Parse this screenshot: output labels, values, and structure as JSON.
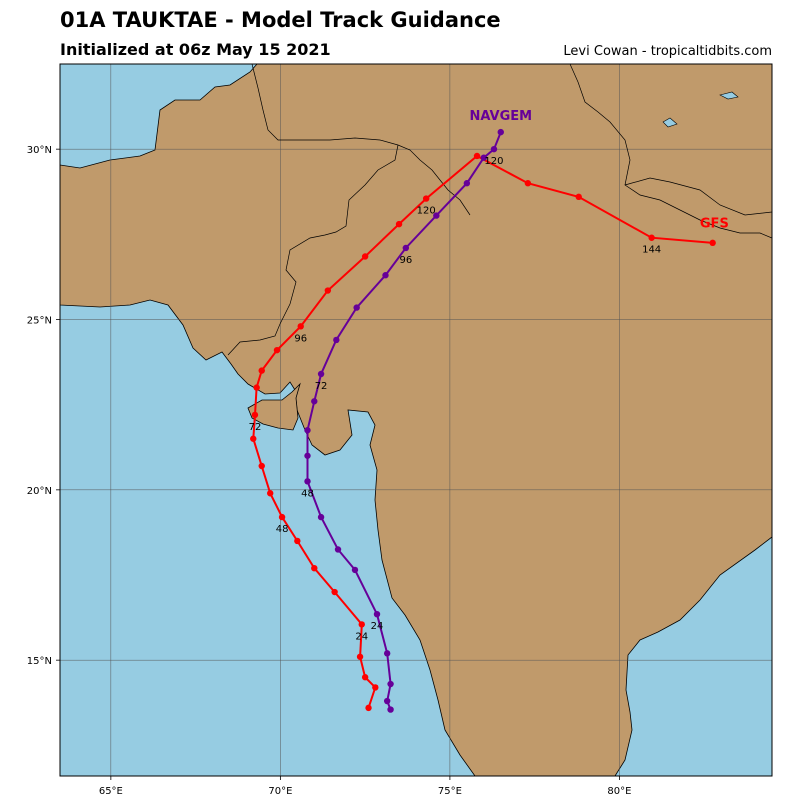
{
  "header": {
    "title": "01A TAUKTAE - Model Track Guidance",
    "subtitle": "Initialized at 06z May 15 2021",
    "credit": "Levi Cowan - tropicaltidbits.com"
  },
  "map": {
    "lon_range": [
      63.5,
      84.5
    ],
    "lat_range": [
      11.6,
      32.5
    ],
    "lon_ticks": [
      {
        "value": 65,
        "label": "65°E"
      },
      {
        "value": 70,
        "label": "70°E"
      },
      {
        "value": 75,
        "label": "75°E"
      },
      {
        "value": 80,
        "label": "80°E"
      }
    ],
    "lat_ticks": [
      {
        "value": 15,
        "label": "15°N"
      },
      {
        "value": 20,
        "label": "20°N"
      },
      {
        "value": 25,
        "label": "25°N"
      },
      {
        "value": 30,
        "label": "30°N"
      }
    ],
    "colors": {
      "land": "#c09a6b",
      "ocean": "#96cce2",
      "grid": "#555555"
    }
  },
  "models": [
    {
      "name": "GFS",
      "color": "#ff0000",
      "points": [
        {
          "lon": 72.6,
          "lat": 13.6
        },
        {
          "lon": 72.8,
          "lat": 14.2
        },
        {
          "lon": 72.5,
          "lat": 14.5
        },
        {
          "lon": 72.35,
          "lat": 15.1
        },
        {
          "lon": 72.4,
          "lat": 16.05
        },
        {
          "lon": 71.6,
          "lat": 17.0
        },
        {
          "lon": 71.0,
          "lat": 17.7
        },
        {
          "lon": 70.5,
          "lat": 18.5
        },
        {
          "lon": 70.05,
          "lat": 19.2
        },
        {
          "lon": 69.7,
          "lat": 19.9
        },
        {
          "lon": 69.45,
          "lat": 20.7
        },
        {
          "lon": 69.2,
          "lat": 21.5
        },
        {
          "lon": 69.25,
          "lat": 22.2
        },
        {
          "lon": 69.3,
          "lat": 23.0
        },
        {
          "lon": 69.45,
          "lat": 23.5
        },
        {
          "lon": 69.9,
          "lat": 24.1
        },
        {
          "lon": 70.6,
          "lat": 24.8
        },
        {
          "lon": 71.4,
          "lat": 25.85
        },
        {
          "lon": 72.5,
          "lat": 26.85
        },
        {
          "lon": 73.5,
          "lat": 27.8
        },
        {
          "lon": 74.3,
          "lat": 28.55
        },
        {
          "lon": 75.8,
          "lat": 29.8
        },
        {
          "lon": 77.3,
          "lat": 29.0
        },
        {
          "lon": 78.8,
          "lat": 28.6
        },
        {
          "lon": 80.95,
          "lat": 27.4
        },
        {
          "lon": 82.75,
          "lat": 27.25
        }
      ],
      "hour_labels": [
        {
          "text": "24",
          "lon": 72.4,
          "lat": 16.05
        },
        {
          "text": "48",
          "lon": 70.05,
          "lat": 19.2
        },
        {
          "text": "72",
          "lon": 69.25,
          "lat": 22.2
        },
        {
          "text": "96",
          "lon": 70.6,
          "lat": 24.8
        },
        {
          "text": "120",
          "lon": 74.3,
          "lat": 28.55
        },
        {
          "text": "144",
          "lon": 80.95,
          "lat": 27.4
        }
      ],
      "label_pos": {
        "lon": 82.8,
        "lat": 27.7
      }
    },
    {
      "name": "NAVGEM",
      "color": "#660099",
      "points": [
        {
          "lon": 73.25,
          "lat": 13.55
        },
        {
          "lon": 73.15,
          "lat": 13.8
        },
        {
          "lon": 73.25,
          "lat": 14.3
        },
        {
          "lon": 73.15,
          "lat": 15.2
        },
        {
          "lon": 72.85,
          "lat": 16.35
        },
        {
          "lon": 72.2,
          "lat": 17.65
        },
        {
          "lon": 71.7,
          "lat": 18.25
        },
        {
          "lon": 71.2,
          "lat": 19.2
        },
        {
          "lon": 70.8,
          "lat": 20.25
        },
        {
          "lon": 70.8,
          "lat": 21.0
        },
        {
          "lon": 70.8,
          "lat": 21.75
        },
        {
          "lon": 71.0,
          "lat": 22.6
        },
        {
          "lon": 71.2,
          "lat": 23.4
        },
        {
          "lon": 71.65,
          "lat": 24.4
        },
        {
          "lon": 72.25,
          "lat": 25.35
        },
        {
          "lon": 73.1,
          "lat": 26.3
        },
        {
          "lon": 73.7,
          "lat": 27.1
        },
        {
          "lon": 74.6,
          "lat": 28.05
        },
        {
          "lon": 75.5,
          "lat": 29.0
        },
        {
          "lon": 76.0,
          "lat": 29.75
        },
        {
          "lon": 76.3,
          "lat": 30.0
        },
        {
          "lon": 76.5,
          "lat": 30.5
        }
      ],
      "hour_labels": [
        {
          "text": "24",
          "lon": 72.85,
          "lat": 16.35
        },
        {
          "text": "48",
          "lon": 70.8,
          "lat": 20.25
        },
        {
          "text": "72",
          "lon": 71.2,
          "lat": 23.4
        },
        {
          "text": "96",
          "lon": 73.7,
          "lat": 27.1
        },
        {
          "text": "120",
          "lon": 76.3,
          "lat": 30.0
        }
      ],
      "label_pos": {
        "lon": 76.5,
        "lat": 30.85
      }
    }
  ]
}
